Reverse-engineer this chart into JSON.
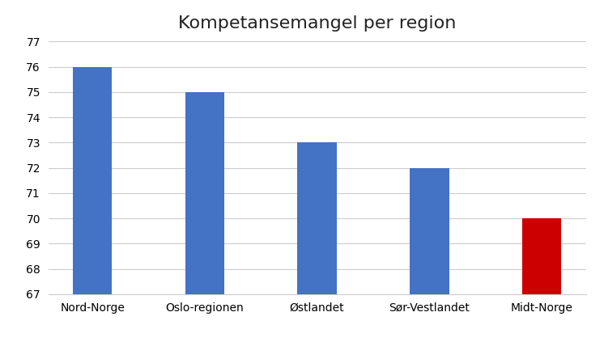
{
  "title": "Kompetansemangel per region",
  "categories": [
    "Nord-Norge",
    "Oslo-regionen",
    "Østlandet",
    "Sør-Vestlandet",
    "Midt-Norge"
  ],
  "values": [
    76,
    75,
    73,
    72,
    70
  ],
  "bar_colors": [
    "#4472C4",
    "#4472C4",
    "#4472C4",
    "#4472C4",
    "#CC0000"
  ],
  "ylim": [
    67,
    77
  ],
  "yticks": [
    67,
    68,
    69,
    70,
    71,
    72,
    73,
    74,
    75,
    76,
    77
  ],
  "title_fontsize": 16,
  "tick_fontsize": 10,
  "background_color": "#FFFFFF",
  "grid_color": "#CCCCCC",
  "bar_width": 0.35
}
